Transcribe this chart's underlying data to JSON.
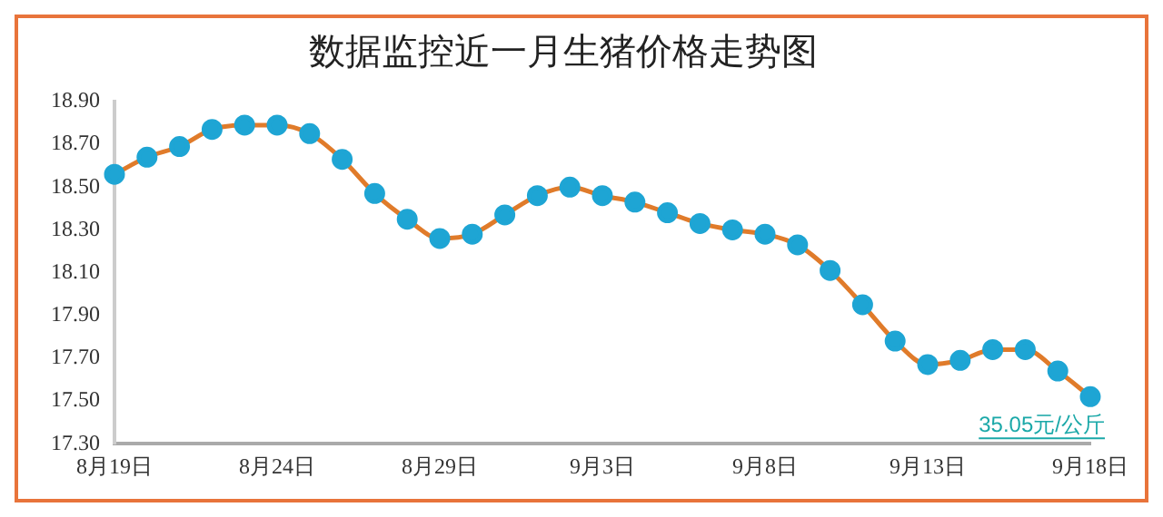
{
  "chart_data": {
    "type": "line",
    "title": "数据监控近一月生猪价格走势图",
    "categories": [
      "8月19日",
      null,
      null,
      null,
      null,
      "8月24日",
      null,
      null,
      null,
      null,
      "8月29日",
      null,
      null,
      null,
      null,
      "9月3日",
      null,
      null,
      null,
      null,
      "9月8日",
      null,
      null,
      null,
      null,
      "9月13日",
      null,
      null,
      null,
      null,
      "9月18日"
    ],
    "series": [
      {
        "color": "#e07b2a",
        "colors": [
          "#1ea5d4",
          "#1ea5d4",
          "#1ea5d4",
          "#1ea5d4",
          "#1ea5d4",
          "#1ea5d4",
          "#1ea5d4",
          "#1ea5d4",
          "#1ea5d4",
          "#1ea5d4",
          "#1ea5d4",
          "#1ea5d4",
          "#1ea5d4",
          "#1ea5d4",
          "#1ea5d4",
          "#1ea5d4",
          "#1ea5d4",
          "#1ea5d4",
          "#1ea5d4",
          "#1ea5d4",
          "#1ea5d4",
          "#1ea5d4",
          "#1ea5d4",
          "#1ea5d4",
          "#1ea5d4",
          "#1ea5d4",
          "#1ea5d4",
          "#1ea5d4",
          "#1ea5d4",
          "#1ea5d4",
          "#1ea5d4"
        ],
        "values": [
          18.56,
          18.64,
          18.69,
          18.77,
          18.79,
          18.79,
          18.75,
          18.63,
          18.47,
          18.35,
          18.26,
          18.28,
          18.37,
          18.46,
          18.5,
          18.46,
          18.43,
          18.38,
          18.33,
          18.3,
          18.28,
          18.23,
          18.11,
          17.95,
          17.78,
          17.67,
          17.69,
          17.74,
          17.74,
          17.64,
          17.52
        ]
      }
    ],
    "marker": "circle",
    "ylim": [
      17.3,
      18.9
    ],
    "yticks": [
      {
        "value": 17.3,
        "label": "17.30"
      },
      {
        "value": 17.5,
        "label": "17.50"
      },
      {
        "value": 17.7,
        "label": "17.70"
      },
      {
        "value": 17.9,
        "label": "17.90"
      },
      {
        "value": 18.1,
        "label": "18.10"
      },
      {
        "value": 18.3,
        "label": "18.30"
      },
      {
        "value": 18.5,
        "label": "18.50"
      },
      {
        "value": 18.7,
        "label": "18.70"
      },
      {
        "value": 18.9,
        "label": "18.90"
      }
    ],
    "grid": false,
    "legend": false,
    "annotations": [
      "35.05元/公斤"
    ]
  }
}
